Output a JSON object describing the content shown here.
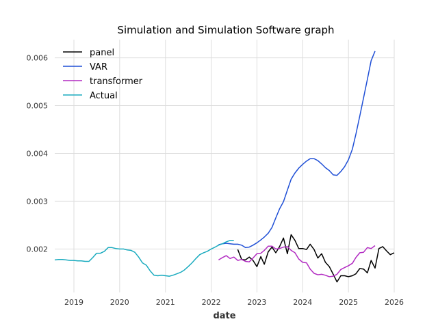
{
  "chart_data": {
    "type": "line",
    "title": "Simulation and Simulation Software graph",
    "xlabel": "date",
    "ylabel": "",
    "x_axis_type": "date",
    "xlim": [
      "2018-08-01",
      "2026-01-01"
    ],
    "ylim": [
      0.00109,
      0.00638
    ],
    "x_ticks": [
      "2019-01-01",
      "2020-01-01",
      "2021-01-01",
      "2022-01-01",
      "2023-01-01",
      "2024-01-01",
      "2025-01-01",
      "2026-01-01"
    ],
    "x_tick_labels": [
      "2019",
      "2020",
      "2021",
      "2022",
      "2023",
      "2024",
      "2025",
      "2026"
    ],
    "y_ticks": [
      0.002,
      0.003,
      0.004,
      0.005,
      0.006
    ],
    "y_tick_labels": [
      "0.002",
      "0.003",
      "0.004",
      "0.005",
      "0.006"
    ],
    "grid": true,
    "legend_position": "top-left",
    "series": [
      {
        "name": "panel",
        "color": "#000000",
        "points": [
          [
            "2022-08-01",
            0.00199
          ],
          [
            "2022-09-01",
            0.00178
          ],
          [
            "2022-10-01",
            0.00177
          ],
          [
            "2022-11-01",
            0.00183
          ],
          [
            "2022-12-01",
            0.00176
          ],
          [
            "2023-01-01",
            0.00163
          ],
          [
            "2023-02-01",
            0.00184
          ],
          [
            "2023-03-01",
            0.00168
          ],
          [
            "2023-04-01",
            0.00194
          ],
          [
            "2023-05-01",
            0.00204
          ],
          [
            "2023-06-01",
            0.00192
          ],
          [
            "2023-07-01",
            0.00205
          ],
          [
            "2023-08-01",
            0.00223
          ],
          [
            "2023-09-01",
            0.0019
          ],
          [
            "2023-10-01",
            0.0023
          ],
          [
            "2023-11-01",
            0.00218
          ],
          [
            "2023-12-01",
            0.00201
          ],
          [
            "2024-01-01",
            0.00201
          ],
          [
            "2024-02-01",
            0.00199
          ],
          [
            "2024-03-01",
            0.0021
          ],
          [
            "2024-04-01",
            0.00199
          ],
          [
            "2024-05-01",
            0.00181
          ],
          [
            "2024-06-01",
            0.0019
          ],
          [
            "2024-07-01",
            0.00172
          ],
          [
            "2024-08-01",
            0.00163
          ],
          [
            "2024-09-01",
            0.00147
          ],
          [
            "2024-10-01",
            0.00131
          ],
          [
            "2024-11-01",
            0.00144
          ],
          [
            "2024-12-01",
            0.00144
          ],
          [
            "2025-01-01",
            0.00142
          ],
          [
            "2025-02-01",
            0.00144
          ],
          [
            "2025-03-01",
            0.00148
          ],
          [
            "2025-04-01",
            0.00159
          ],
          [
            "2025-05-01",
            0.00158
          ],
          [
            "2025-06-01",
            0.0015
          ],
          [
            "2025-07-01",
            0.00176
          ],
          [
            "2025-08-01",
            0.0016
          ],
          [
            "2025-09-01",
            0.00201
          ],
          [
            "2025-10-01",
            0.00205
          ],
          [
            "2025-11-01",
            0.00196
          ],
          [
            "2025-12-01",
            0.00188
          ],
          [
            "2026-01-01",
            0.00192
          ]
        ]
      },
      {
        "name": "VAR",
        "color": "#1f4fd6",
        "points": [
          [
            "2022-03-01",
            0.00209
          ],
          [
            "2022-04-01",
            0.00211
          ],
          [
            "2022-05-01",
            0.00212
          ],
          [
            "2022-06-01",
            0.00211
          ],
          [
            "2022-07-01",
            0.0021
          ],
          [
            "2022-08-01",
            0.0021
          ],
          [
            "2022-09-01",
            0.00208
          ],
          [
            "2022-10-01",
            0.00203
          ],
          [
            "2022-11-01",
            0.00204
          ],
          [
            "2022-12-01",
            0.00208
          ],
          [
            "2023-01-01",
            0.00213
          ],
          [
            "2023-02-01",
            0.00219
          ],
          [
            "2023-03-01",
            0.00225
          ],
          [
            "2023-04-01",
            0.00233
          ],
          [
            "2023-05-01",
            0.00245
          ],
          [
            "2023-06-01",
            0.00265
          ],
          [
            "2023-07-01",
            0.00284
          ],
          [
            "2023-08-01",
            0.00299
          ],
          [
            "2023-09-01",
            0.00323
          ],
          [
            "2023-10-01",
            0.00346
          ],
          [
            "2023-11-01",
            0.00359
          ],
          [
            "2023-12-01",
            0.00369
          ],
          [
            "2024-01-01",
            0.00377
          ],
          [
            "2024-02-01",
            0.00384
          ],
          [
            "2024-03-01",
            0.00389
          ],
          [
            "2024-04-01",
            0.00389
          ],
          [
            "2024-05-01",
            0.00385
          ],
          [
            "2024-06-01",
            0.00378
          ],
          [
            "2024-07-01",
            0.0037
          ],
          [
            "2024-08-01",
            0.00364
          ],
          [
            "2024-09-01",
            0.00355
          ],
          [
            "2024-10-01",
            0.00354
          ],
          [
            "2024-11-01",
            0.00362
          ],
          [
            "2024-12-01",
            0.00372
          ],
          [
            "2025-01-01",
            0.00387
          ],
          [
            "2025-02-01",
            0.00409
          ],
          [
            "2025-03-01",
            0.0044
          ],
          [
            "2025-04-01",
            0.00478
          ],
          [
            "2025-05-01",
            0.00516
          ],
          [
            "2025-06-01",
            0.00555
          ],
          [
            "2025-07-01",
            0.00594
          ],
          [
            "2025-08-01",
            0.00614
          ]
        ]
      },
      {
        "name": "transformer",
        "color": "#b22ac2",
        "points": [
          [
            "2022-03-01",
            0.00177
          ],
          [
            "2022-04-01",
            0.00182
          ],
          [
            "2022-05-01",
            0.00186
          ],
          [
            "2022-06-01",
            0.0018
          ],
          [
            "2022-07-01",
            0.00183
          ],
          [
            "2022-08-01",
            0.00176
          ],
          [
            "2022-09-01",
            0.00178
          ],
          [
            "2022-10-01",
            0.00174
          ],
          [
            "2022-11-01",
            0.00173
          ],
          [
            "2022-12-01",
            0.00181
          ],
          [
            "2023-01-01",
            0.0019
          ],
          [
            "2023-02-01",
            0.00191
          ],
          [
            "2023-03-01",
            0.00197
          ],
          [
            "2023-04-01",
            0.00206
          ],
          [
            "2023-05-01",
            0.00206
          ],
          [
            "2023-06-01",
            0.002
          ],
          [
            "2023-07-01",
            0.00201
          ],
          [
            "2023-08-01",
            0.00204
          ],
          [
            "2023-09-01",
            0.00205
          ],
          [
            "2023-10-01",
            0.00197
          ],
          [
            "2023-11-01",
            0.00192
          ],
          [
            "2023-12-01",
            0.00179
          ],
          [
            "2024-01-01",
            0.00172
          ],
          [
            "2024-02-01",
            0.00171
          ],
          [
            "2024-03-01",
            0.00158
          ],
          [
            "2024-04-01",
            0.00149
          ],
          [
            "2024-05-01",
            0.00146
          ],
          [
            "2024-06-01",
            0.00147
          ],
          [
            "2024-07-01",
            0.00145
          ],
          [
            "2024-08-01",
            0.00142
          ],
          [
            "2024-09-01",
            0.00143
          ],
          [
            "2024-10-01",
            0.00147
          ],
          [
            "2024-11-01",
            0.00157
          ],
          [
            "2024-12-01",
            0.00161
          ],
          [
            "2025-01-01",
            0.00165
          ],
          [
            "2025-02-01",
            0.0017
          ],
          [
            "2025-03-01",
            0.00182
          ],
          [
            "2025-04-01",
            0.00192
          ],
          [
            "2025-05-01",
            0.00193
          ],
          [
            "2025-06-01",
            0.00203
          ],
          [
            "2025-07-01",
            0.00201
          ],
          [
            "2025-08-01",
            0.00207
          ]
        ]
      },
      {
        "name": "Actual",
        "color": "#1aabbf",
        "points": [
          [
            "2018-08-01",
            0.00177
          ],
          [
            "2018-09-01",
            0.00178
          ],
          [
            "2018-10-01",
            0.00178
          ],
          [
            "2018-11-01",
            0.00177
          ],
          [
            "2018-12-01",
            0.00176
          ],
          [
            "2019-01-01",
            0.00176
          ],
          [
            "2019-02-01",
            0.00175
          ],
          [
            "2019-03-01",
            0.00175
          ],
          [
            "2019-04-01",
            0.00174
          ],
          [
            "2019-05-01",
            0.00174
          ],
          [
            "2019-06-01",
            0.00182
          ],
          [
            "2019-07-01",
            0.00191
          ],
          [
            "2019-08-01",
            0.00191
          ],
          [
            "2019-09-01",
            0.00195
          ],
          [
            "2019-10-01",
            0.00203
          ],
          [
            "2019-11-01",
            0.00203
          ],
          [
            "2019-12-01",
            0.00201
          ],
          [
            "2020-01-01",
            0.002
          ],
          [
            "2020-02-01",
            0.002
          ],
          [
            "2020-03-01",
            0.00198
          ],
          [
            "2020-04-01",
            0.00197
          ],
          [
            "2020-05-01",
            0.00193
          ],
          [
            "2020-06-01",
            0.00183
          ],
          [
            "2020-07-01",
            0.00171
          ],
          [
            "2020-08-01",
            0.00166
          ],
          [
            "2020-09-01",
            0.00154
          ],
          [
            "2020-10-01",
            0.00145
          ],
          [
            "2020-11-01",
            0.00144
          ],
          [
            "2020-12-01",
            0.00145
          ],
          [
            "2021-01-01",
            0.00144
          ],
          [
            "2021-02-01",
            0.00143
          ],
          [
            "2021-03-01",
            0.00145
          ],
          [
            "2021-04-01",
            0.00148
          ],
          [
            "2021-05-01",
            0.00151
          ],
          [
            "2021-06-01",
            0.00156
          ],
          [
            "2021-07-01",
            0.00163
          ],
          [
            "2021-08-01",
            0.00171
          ],
          [
            "2021-09-01",
            0.0018
          ],
          [
            "2021-10-01",
            0.00188
          ],
          [
            "2021-11-01",
            0.00192
          ],
          [
            "2021-12-01",
            0.00195
          ],
          [
            "2022-01-01",
            0.002
          ],
          [
            "2022-02-01",
            0.00204
          ],
          [
            "2022-03-01",
            0.00208
          ],
          [
            "2022-04-01",
            0.00211
          ],
          [
            "2022-05-01",
            0.00215
          ],
          [
            "2022-06-01",
            0.00218
          ],
          [
            "2022-07-01",
            0.00218
          ]
        ]
      }
    ]
  }
}
